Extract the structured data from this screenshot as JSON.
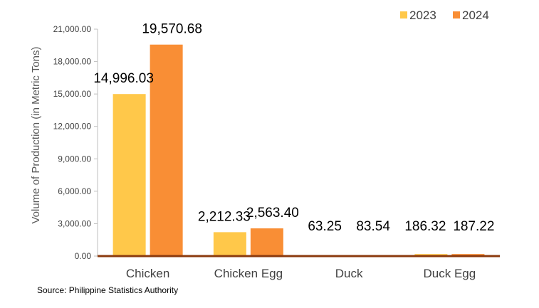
{
  "chart_data": {
    "type": "bar",
    "categories": [
      "Chicken",
      "Chicken Egg",
      "Duck",
      "Duck Egg"
    ],
    "series": [
      {
        "name": "2023",
        "values": [
          14996.03,
          2212.33,
          63.25,
          186.32
        ],
        "labels": [
          "14,996.03",
          "2,212.33",
          "63.25",
          "186.32"
        ],
        "color": "#FFC84A"
      },
      {
        "name": "2024",
        "values": [
          19570.68,
          2563.4,
          83.54,
          187.22
        ],
        "labels": [
          "19,570.68",
          "2,563.40",
          "83.54",
          "187.22"
        ],
        "color": "#F98E35"
      }
    ],
    "ylabel": "Volume of Production (in Metric Tons)",
    "ylim": [
      0,
      21000
    ],
    "yticks": [
      0,
      3000,
      6000,
      9000,
      12000,
      15000,
      18000,
      21000
    ],
    "ytick_labels": [
      "0.00",
      "3,000.00",
      "6,000.00",
      "9,000.00",
      "12,000.00",
      "15,000.00",
      "18,000.00",
      "21,000.00"
    ],
    "grid": false,
    "legend_position": "top-right",
    "baseline_color": "#8B3A0E"
  },
  "source": "Source: Philippine Statistics Authority"
}
